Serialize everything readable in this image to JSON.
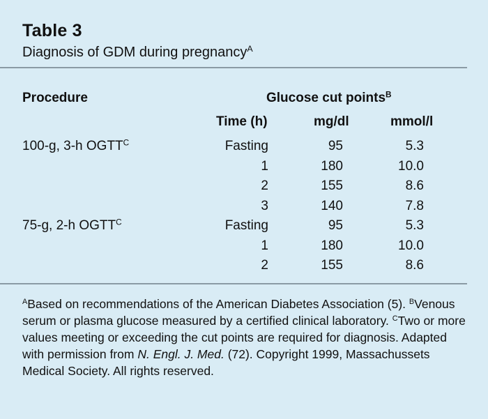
{
  "table": {
    "title": "Table 3",
    "caption": "Diagnosis of GDM during pregnancy",
    "caption_note": "A",
    "header": {
      "procedure": "Procedure",
      "group": "Glucose cut points",
      "group_note": "B",
      "time": "Time (h)",
      "mgdl": "mg/dl",
      "mmol": "mmol/l"
    },
    "rows": [
      {
        "procedure": "100-g, 3-h OGTT",
        "note": "C",
        "time": "Fasting",
        "mgdl": "95",
        "mmol": "5.3"
      },
      {
        "procedure": "",
        "note": "",
        "time": "1",
        "mgdl": "180",
        "mmol": "10.0"
      },
      {
        "procedure": "",
        "note": "",
        "time": "2",
        "mgdl": "155",
        "mmol": "8.6"
      },
      {
        "procedure": "",
        "note": "",
        "time": "3",
        "mgdl": "140",
        "mmol": "7.8"
      },
      {
        "procedure": "75-g, 2-h OGTT",
        "note": "C",
        "time": "Fasting",
        "mgdl": "95",
        "mmol": "5.3"
      },
      {
        "procedure": "",
        "note": "",
        "time": "1",
        "mgdl": "180",
        "mmol": "10.0"
      },
      {
        "procedure": "",
        "note": "",
        "time": "2",
        "mgdl": "155",
        "mmol": "8.6"
      }
    ]
  },
  "footnotes": {
    "a_mark": "A",
    "a_text": "Based on recommendations of the American Diabetes Association (5). ",
    "b_mark": "B",
    "b_text": "Venous serum or plasma glucose measured by a certified clinical laboratory. ",
    "c_mark": "C",
    "c_text": "Two or more values meeting or exceeding the cut points are required for diagnosis. Adapted with permission from ",
    "journal": "N. Engl. J. Med.",
    "rest": " (72). Copyright 1999, Massachussets Medical Society. All rights reserved."
  }
}
